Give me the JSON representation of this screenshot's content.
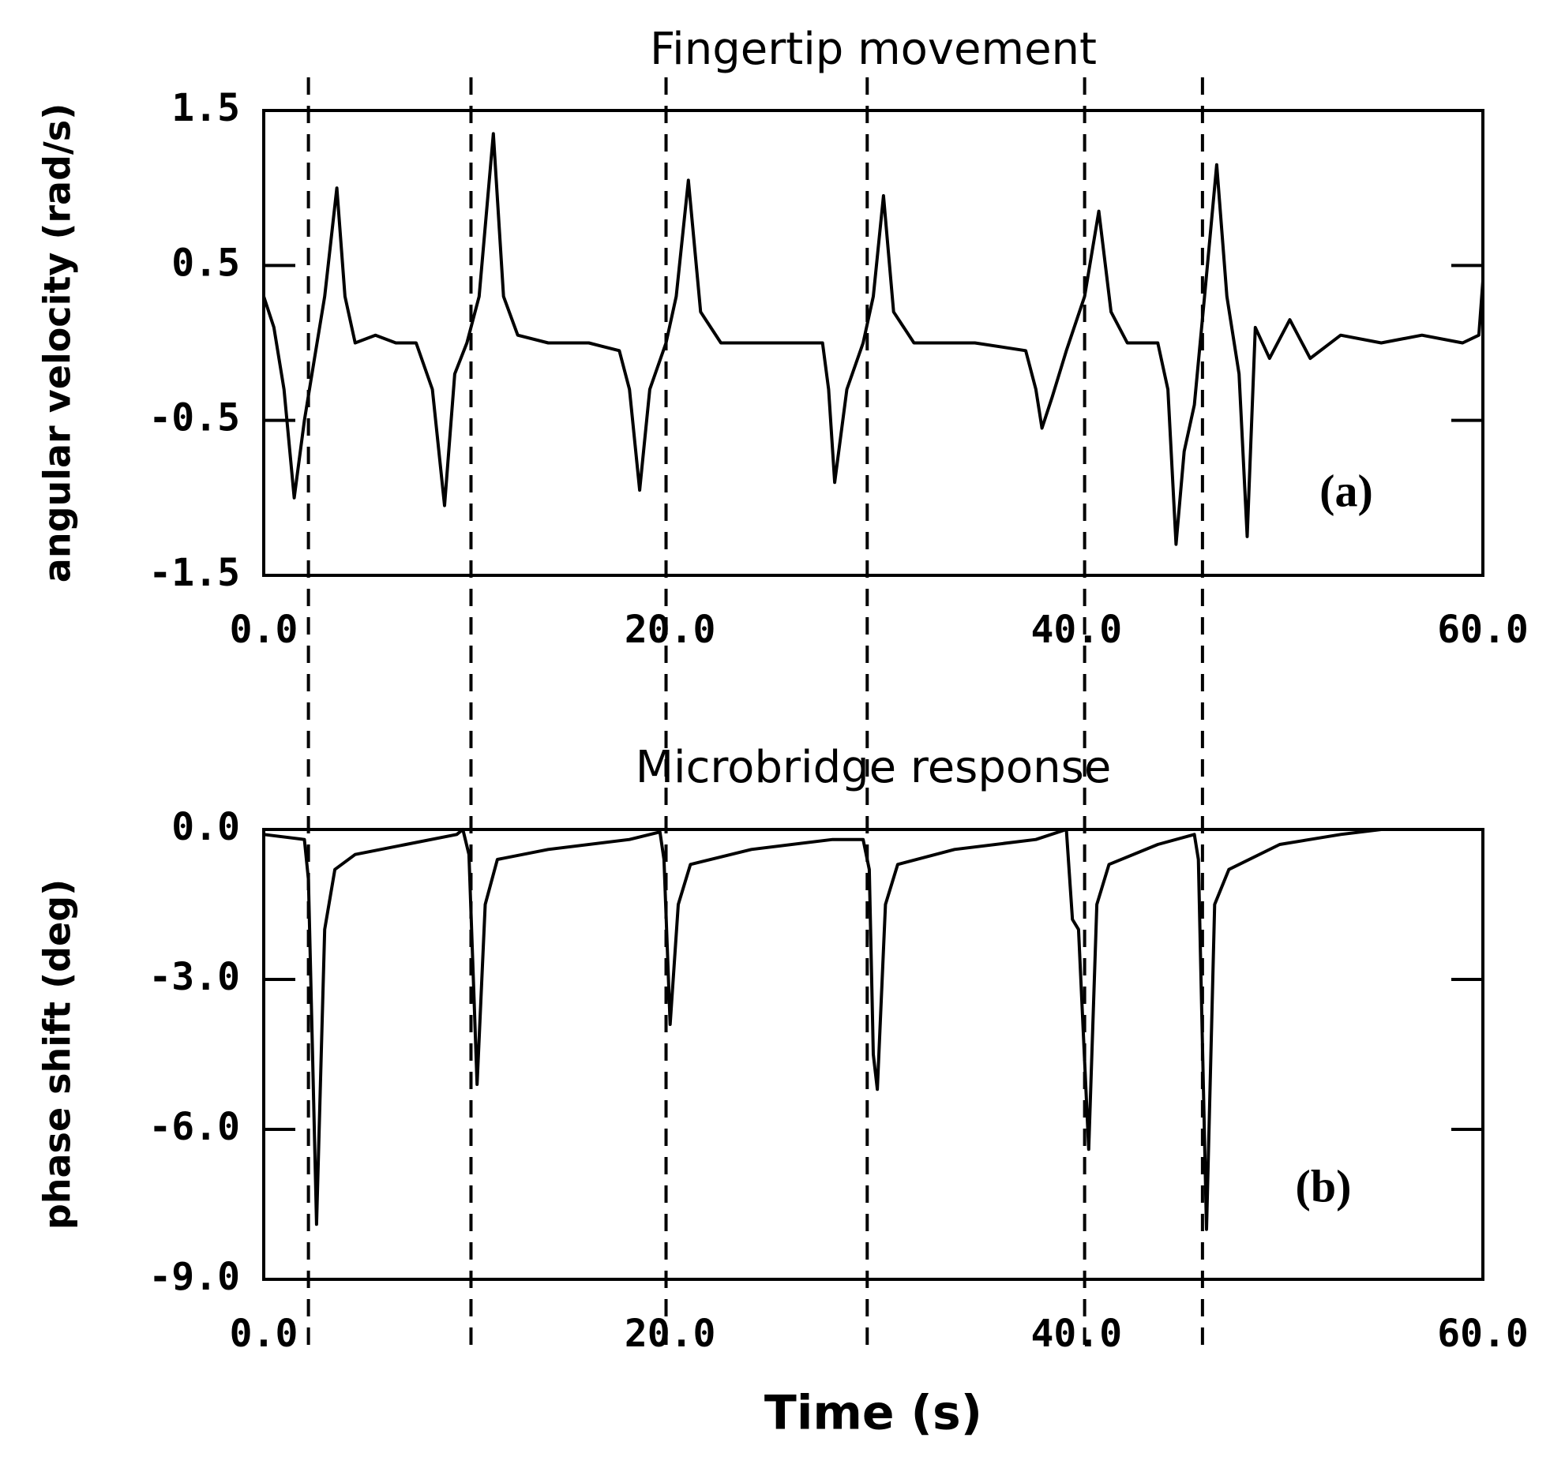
{
  "chart_data": [
    {
      "type": "line",
      "title": "Fingertip movement",
      "ylabel": "angular velocity (rad/s)",
      "panel_label": "(a)",
      "x": [
        0,
        0.5,
        1.0,
        1.5,
        2.0,
        2.5,
        3.0,
        3.6,
        4.0,
        4.5,
        5.5,
        6.5,
        7.5,
        8.3,
        8.9,
        9.4,
        10.0,
        10.6,
        11.3,
        11.8,
        12.5,
        14,
        16,
        17.5,
        18.0,
        18.5,
        19.0,
        19.8,
        20.3,
        20.9,
        21.5,
        22.5,
        25,
        27.5,
        27.8,
        28.1,
        28.7,
        29.5,
        30.0,
        30.5,
        31.0,
        32,
        35,
        37.5,
        38.0,
        38.3,
        38.8,
        39.5,
        40.4,
        41.1,
        41.7,
        42.5,
        44.0,
        44.5,
        44.9,
        45.3,
        45.8,
        46.3,
        46.9,
        47.4,
        48.0,
        48.4,
        48.8,
        49.5,
        50.5,
        51.5,
        53,
        55,
        57,
        59,
        59.8,
        60
      ],
      "series": [
        {
          "color": "#000000",
          "values": [
            0.3,
            0.1,
            -0.3,
            -1.0,
            -0.5,
            -0.1,
            0.3,
            1.0,
            0.3,
            0.0,
            0.05,
            0.0,
            0.0,
            -0.3,
            -1.05,
            -0.2,
            0.0,
            0.3,
            1.35,
            0.3,
            0.05,
            0.0,
            0.0,
            -0.05,
            -0.3,
            -0.95,
            -0.3,
            0.0,
            0.3,
            1.05,
            0.2,
            0.0,
            0.0,
            0.0,
            -0.3,
            -0.9,
            -0.3,
            0.0,
            0.3,
            0.95,
            0.2,
            0.0,
            0.0,
            -0.05,
            -0.3,
            -0.55,
            -0.35,
            -0.05,
            0.3,
            0.85,
            0.2,
            0.0,
            0.0,
            -0.3,
            -1.3,
            -0.7,
            -0.4,
            0.3,
            1.15,
            0.3,
            -0.2,
            -1.25,
            0.1,
            -0.1,
            0.15,
            -0.1,
            0.05,
            0.0,
            0.05,
            0.0,
            0.05,
            0.4
          ]
        }
      ],
      "xlim": [
        0,
        60
      ],
      "ylim": [
        -1.5,
        1.5
      ],
      "xticks": [
        {
          "value": 0,
          "label": "0.0"
        },
        {
          "value": 20,
          "label": "20.0"
        },
        {
          "value": 40,
          "label": "40.0"
        },
        {
          "value": 60,
          "label": "60.0"
        }
      ],
      "yticks": [
        -1.5,
        -0.5,
        0.5,
        1.5
      ]
    },
    {
      "type": "line",
      "title": "Microbridge response",
      "ylabel": "phase shift (deg)",
      "xlabel": "Time (s)",
      "panel_label": "(b)",
      "x": [
        0,
        2.0,
        2.2,
        2.6,
        3.0,
        3.5,
        4.5,
        7,
        9.5,
        9.8,
        10.1,
        10.5,
        10.9,
        11.5,
        14,
        18,
        19.5,
        19.7,
        20.0,
        20.4,
        21,
        24,
        28,
        29.5,
        29.8,
        30.0,
        30.2,
        30.6,
        31.2,
        34,
        38,
        39.5,
        39.8,
        40.1,
        40.6,
        41.0,
        41.6,
        44,
        45.8,
        46.0,
        46.4,
        46.8,
        47.5,
        50,
        53,
        55,
        60
      ],
      "series": [
        {
          "color": "#000000",
          "values": [
            -0.1,
            -0.2,
            -1.0,
            -7.9,
            -2.0,
            -0.8,
            -0.5,
            -0.3,
            -0.1,
            0.0,
            -0.5,
            -5.1,
            -1.5,
            -0.6,
            -0.4,
            -0.2,
            -0.05,
            -0.6,
            -3.9,
            -1.5,
            -0.7,
            -0.4,
            -0.2,
            -0.2,
            -0.8,
            -4.5,
            -5.2,
            -1.5,
            -0.7,
            -0.4,
            -0.2,
            0.0,
            -1.8,
            -2.0,
            -6.4,
            -1.5,
            -0.7,
            -0.3,
            -0.1,
            -0.6,
            -8.0,
            -1.5,
            -0.8,
            -0.3,
            -0.1,
            0.0,
            0.0
          ]
        }
      ],
      "xlim": [
        0,
        60
      ],
      "ylim": [
        -9,
        0
      ],
      "xticks": [
        {
          "value": 0,
          "label": "0.0"
        },
        {
          "value": 20,
          "label": "20.0"
        },
        {
          "value": 40,
          "label": "40.0"
        },
        {
          "value": 60,
          "label": "60.0"
        }
      ],
      "yticks": [
        {
          "value": -9,
          "label": "-9.0"
        },
        {
          "value": -6,
          "label": "-6.0"
        },
        {
          "value": -3,
          "label": "-3.0"
        },
        {
          "value": 0,
          "label": "0.0"
        }
      ]
    }
  ],
  "event_times": [
    2.2,
    10.2,
    19.8,
    29.7,
    40.4,
    46.2
  ]
}
